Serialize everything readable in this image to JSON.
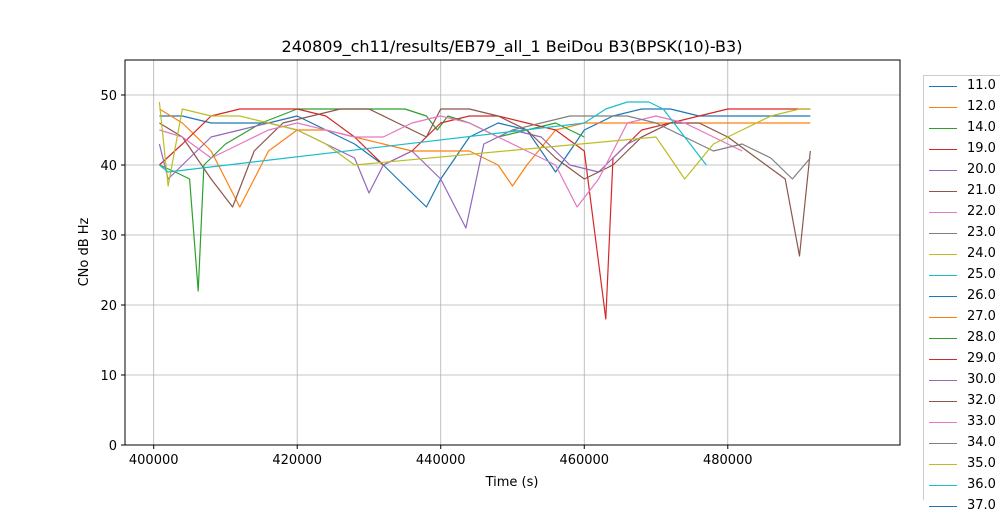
{
  "chart_data": {
    "type": "line",
    "title": "240809_ch11/results/EB79_all_1 BeiDou B3(BPSK(10)-B3)",
    "xlabel": "Time (s)",
    "ylabel": "CNo dB Hz",
    "xlim": [
      396000,
      504000
    ],
    "ylim": [
      0,
      55
    ],
    "xticks": [
      400000,
      420000,
      440000,
      460000,
      480000
    ],
    "xtick_labels": [
      "400000",
      "420000",
      "440000",
      "460000",
      "480000"
    ],
    "yticks": [
      0,
      10,
      20,
      30,
      40,
      50
    ],
    "ytick_labels": [
      "0",
      "10",
      "20",
      "30",
      "40",
      "50"
    ],
    "grid": true,
    "legend_position": "right (outside plot)",
    "series": [
      {
        "name": "11.0",
        "color": "#1f77b4",
        "x": [
          400800,
          404000,
          408000,
          412000,
          416000,
          420000,
          424000,
          428000,
          432000,
          436000,
          438000,
          440000,
          444000,
          448000,
          452000,
          456000,
          460000,
          464000,
          468000,
          472000,
          476000,
          480000,
          484000,
          488000,
          491500
        ],
        "y": [
          47,
          47,
          46,
          46,
          46,
          47,
          45,
          43,
          40,
          36,
          34,
          38,
          44,
          46,
          45,
          39,
          45,
          47,
          48,
          48,
          47,
          47,
          47,
          47,
          47
        ]
      },
      {
        "name": "12.0",
        "color": "#ff7f0e",
        "x": [
          400800,
          404000,
          408000,
          410000,
          412000,
          414000,
          416000,
          420000,
          424000,
          428000,
          432000,
          436000,
          440000,
          444000,
          448000,
          450000,
          452000,
          456000,
          460000,
          464000,
          468000,
          472000,
          476000,
          480000,
          484000,
          488000,
          491500
        ],
        "y": [
          48,
          46,
          42,
          38,
          34,
          38,
          42,
          45,
          45,
          44,
          43,
          42,
          42,
          42,
          40,
          37,
          40,
          45,
          46,
          46,
          46,
          46,
          46,
          46,
          46,
          46,
          46
        ]
      },
      {
        "name": "14.0",
        "color": "#2ca02c",
        "x": [
          400800,
          403000,
          405000,
          406200,
          407000,
          410000,
          415000,
          420000,
          425000,
          430000,
          435000,
          438000,
          439500,
          441000,
          444000,
          448000,
          452000,
          456000,
          458000,
          460000
        ],
        "y": [
          40,
          39,
          38,
          22,
          40,
          43,
          46,
          48,
          48,
          48,
          48,
          47,
          45,
          47,
          46,
          44,
          45,
          46,
          45,
          44
        ]
      },
      {
        "name": "19.0",
        "color": "#d62728",
        "x": [
          400800,
          404000,
          408000,
          412000,
          416000,
          420000,
          424000,
          428000,
          432000,
          436000,
          440000,
          444000,
          448000,
          452000,
          456000,
          460000,
          463000,
          464000,
          468000,
          472000,
          476000,
          480000,
          484000,
          488000,
          491500
        ],
        "y": [
          40,
          43,
          47,
          48,
          48,
          48,
          47,
          44,
          40,
          42,
          46,
          47,
          47,
          46,
          45,
          42,
          18,
          41,
          45,
          46,
          47,
          48,
          48,
          48,
          48
        ]
      },
      {
        "name": "20.0",
        "color": "#9467bd",
        "x": [
          400800,
          402000,
          404000,
          408000,
          412000,
          416000,
          420000,
          424000,
          428000,
          430000,
          432000,
          436000,
          440000,
          443500,
          446000,
          450000,
          454000,
          458000,
          462000,
          466000,
          470000
        ],
        "y": [
          43,
          38,
          40,
          44,
          45,
          46,
          45,
          43,
          41,
          36,
          40,
          42,
          38,
          31,
          43,
          45,
          44,
          40,
          39,
          43,
          45
        ]
      },
      {
        "name": "21.0",
        "color": "#8c564b",
        "x": [
          400800,
          404000,
          408000,
          411000,
          414000,
          418000,
          422000,
          426000,
          430000,
          434000,
          438000,
          440000,
          444000,
          448000,
          452000,
          456000,
          460000,
          464000,
          468000,
          472000,
          476000,
          480000,
          484000,
          488000,
          490000,
          491500
        ],
        "y": [
          46,
          44,
          38,
          34,
          42,
          46,
          47,
          48,
          48,
          46,
          44,
          48,
          48,
          47,
          45,
          41,
          38,
          40,
          44,
          46,
          46,
          44,
          41,
          38,
          27,
          42
        ]
      },
      {
        "name": "22.0",
        "color": "#e377c2",
        "x": [
          400800,
          404000,
          408000,
          412000,
          416000,
          420000,
          424000,
          428000,
          432000,
          436000,
          440000,
          444000,
          448000,
          452000,
          456000,
          459000,
          462000,
          464000,
          466000,
          470000,
          474000,
          478000,
          482000
        ],
        "y": [
          45,
          44,
          41,
          43,
          45,
          46,
          45,
          44,
          44,
          46,
          47,
          46,
          44,
          42,
          40,
          34,
          38,
          42,
          46,
          47,
          46,
          44,
          42
        ]
      },
      {
        "name": "23.0",
        "color": "#7f7f7f",
        "x": [
          450000,
          454000,
          458000,
          462000,
          466000,
          470000,
          474000,
          478000,
          482000,
          486000,
          489000,
          491500
        ],
        "y": [
          45,
          46,
          47,
          47,
          47,
          46,
          44,
          42,
          43,
          41,
          38,
          41
        ]
      },
      {
        "name": "24.0",
        "color": "#bcbd22",
        "x": [
          400800,
          402000,
          404000,
          408000,
          412000,
          416000,
          420000,
          424000,
          428000,
          470000,
          472000,
          474000,
          478000,
          482000,
          486000,
          490000,
          491500
        ],
        "y": [
          49,
          37,
          48,
          47,
          47,
          46,
          45,
          43,
          40,
          44,
          41,
          38,
          43,
          45,
          47,
          48,
          48
        ]
      },
      {
        "name": "25.0",
        "color": "#17becf",
        "x": [
          400800,
          402000,
          460000,
          463000,
          466000,
          469000,
          471000,
          474000,
          477000
        ],
        "y": [
          40,
          39,
          46,
          48,
          49,
          49,
          48,
          44,
          40
        ]
      },
      {
        "name": "26.0",
        "color": "#1f77b4",
        "x": [],
        "y": []
      },
      {
        "name": "27.0",
        "color": "#ff7f0e",
        "x": [],
        "y": []
      },
      {
        "name": "28.0",
        "color": "#2ca02c",
        "x": [],
        "y": []
      },
      {
        "name": "29.0",
        "color": "#d62728",
        "x": [],
        "y": []
      },
      {
        "name": "30.0",
        "color": "#9467bd",
        "x": [],
        "y": []
      },
      {
        "name": "32.0",
        "color": "#8c564b",
        "x": [],
        "y": []
      },
      {
        "name": "33.0",
        "color": "#e377c2",
        "x": [],
        "y": []
      },
      {
        "name": "34.0",
        "color": "#7f7f7f",
        "x": [],
        "y": []
      },
      {
        "name": "35.0",
        "color": "#bcbd22",
        "x": [],
        "y": []
      },
      {
        "name": "36.0",
        "color": "#17becf",
        "x": [],
        "y": []
      },
      {
        "name": "37.0",
        "color": "#1f77b4",
        "x": [],
        "y": []
      }
    ]
  }
}
